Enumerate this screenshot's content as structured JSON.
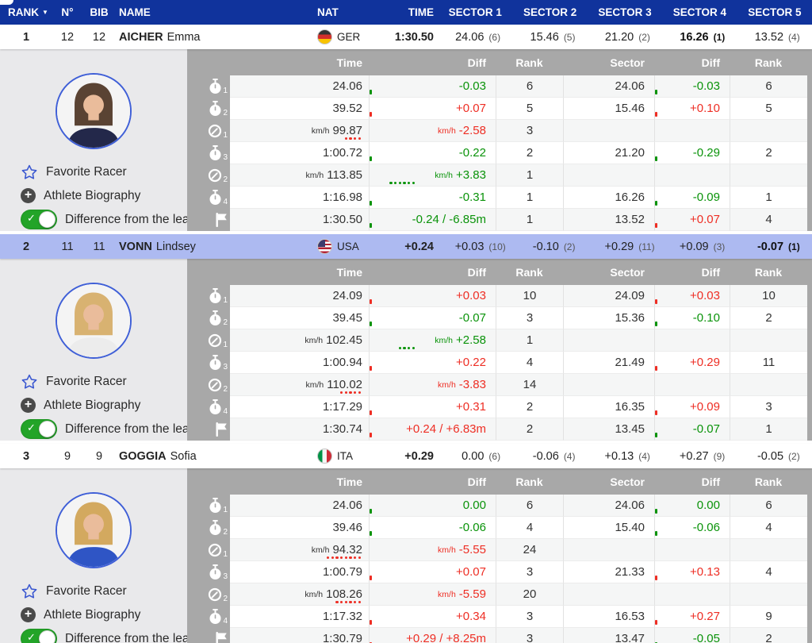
{
  "table": {
    "headers": {
      "rank": "RANK",
      "n": "N°",
      "bib": "BIB",
      "name": "NAME",
      "nat": "NAT",
      "time": "TIME",
      "sectors": [
        "SECTOR 1",
        "SECTOR 2",
        "SECTOR 3",
        "SECTOR 4",
        "SECTOR 5"
      ]
    },
    "sort_icon": "▼"
  },
  "panel_headers": {
    "time": "Time",
    "diff": "Diff",
    "rank": "Rank",
    "sector": "Sector",
    "sector_diff": "Diff",
    "sector_rank": "Rank"
  },
  "sidebar": {
    "favorite": "Favorite Racer",
    "biography": "Athlete Biography",
    "toggle": "Difference from the leader",
    "toggle_on": true
  },
  "colors": {
    "header_blue": "#10339c",
    "highlight_row": "#adbaf1",
    "panel_gray": "#a8a8a8",
    "sidebar_gray": "#e9e9eb",
    "diff_green": "#0a930a",
    "diff_red": "#ee2e24",
    "toggle_green": "#23a428",
    "star_blue": "#3a57d0"
  },
  "racers": [
    {
      "rank": "1",
      "n": "12",
      "bib": "12",
      "last": "AICHER",
      "first": "Emma",
      "nat": "GER",
      "flag": "ger",
      "time": "1:30.50",
      "highlight": false,
      "avatar": {
        "hair": "#5a4333",
        "jacket": "#23284a"
      },
      "sectors": [
        {
          "v": "24.06",
          "r": "(6)"
        },
        {
          "v": "15.46",
          "r": "(5)"
        },
        {
          "v": "21.20",
          "r": "(2)"
        },
        {
          "v": "16.26",
          "r": "(1)",
          "best": true
        },
        {
          "v": "13.52",
          "r": "(4)"
        }
      ],
      "rows": [
        {
          "icon": "stopwatch",
          "sub": "1",
          "time": "24.06",
          "diff": "-0.03",
          "dc": "green",
          "rank": "6",
          "sector": "24.06",
          "sdiff": "-0.03",
          "sdc": "green",
          "srank": "6"
        },
        {
          "icon": "stopwatch",
          "sub": "2",
          "time": "39.52",
          "diff": "+0.07",
          "dc": "red",
          "rank": "5",
          "sector": "15.46",
          "sdiff": "+0.10",
          "sdc": "red",
          "srank": "5"
        },
        {
          "icon": "speed",
          "sub": "1",
          "unit": "km/h",
          "time": "99.87",
          "diff": "-2.58",
          "dc": "red",
          "rank": "3",
          "dots": 4,
          "dots_side": "left"
        },
        {
          "icon": "stopwatch",
          "sub": "3",
          "time": "1:00.72",
          "diff": "-0.22",
          "dc": "green",
          "rank": "2",
          "sector": "21.20",
          "sdiff": "-0.29",
          "sdc": "green",
          "srank": "2"
        },
        {
          "icon": "speed",
          "sub": "2",
          "unit": "km/h",
          "time": "113.85",
          "diff": "+3.83",
          "dc": "green",
          "rank": "1",
          "dots": 6,
          "dots_side": "right"
        },
        {
          "icon": "stopwatch",
          "sub": "4",
          "time": "1:16.98",
          "diff": "-0.31",
          "dc": "green",
          "rank": "1",
          "sector": "16.26",
          "sdiff": "-0.09",
          "sdc": "green",
          "srank": "1"
        },
        {
          "icon": "flag",
          "time": "1:30.50",
          "diff": "-0.24 / -6.85m",
          "dc": "green",
          "rank": "1",
          "sector": "13.52",
          "sdiff": "+0.07",
          "sdc": "red",
          "srank": "4"
        }
      ]
    },
    {
      "rank": "2",
      "n": "11",
      "bib": "11",
      "last": "VONN",
      "first": "Lindsey",
      "nat": "USA",
      "flag": "usa",
      "time": "+0.24",
      "highlight": true,
      "avatar": {
        "hair": "#d8b271",
        "jacket": "#ececec"
      },
      "sectors": [
        {
          "v": "+0.03",
          "r": "(10)"
        },
        {
          "v": "-0.10",
          "r": "(2)"
        },
        {
          "v": "+0.29",
          "r": "(11)"
        },
        {
          "v": "+0.09",
          "r": "(3)"
        },
        {
          "v": "-0.07",
          "r": "(1)",
          "best": true
        }
      ],
      "rows": [
        {
          "icon": "stopwatch",
          "sub": "1",
          "time": "24.09",
          "diff": "+0.03",
          "dc": "red",
          "rank": "10",
          "sector": "24.09",
          "sdiff": "+0.03",
          "sdc": "red",
          "srank": "10"
        },
        {
          "icon": "stopwatch",
          "sub": "2",
          "time": "39.45",
          "diff": "-0.07",
          "dc": "green",
          "rank": "3",
          "sector": "15.36",
          "sdiff": "-0.10",
          "sdc": "green",
          "srank": "2"
        },
        {
          "icon": "speed",
          "sub": "1",
          "unit": "km/h",
          "time": "102.45",
          "diff": "+2.58",
          "dc": "green",
          "rank": "1",
          "dots": 4,
          "dots_side": "right"
        },
        {
          "icon": "stopwatch",
          "sub": "3",
          "time": "1:00.94",
          "diff": "+0.22",
          "dc": "red",
          "rank": "4",
          "sector": "21.49",
          "sdiff": "+0.29",
          "sdc": "red",
          "srank": "11"
        },
        {
          "icon": "speed",
          "sub": "2",
          "unit": "km/h",
          "time": "110.02",
          "diff": "-3.83",
          "dc": "red",
          "rank": "14",
          "dots": 5,
          "dots_side": "left"
        },
        {
          "icon": "stopwatch",
          "sub": "4",
          "time": "1:17.29",
          "diff": "+0.31",
          "dc": "red",
          "rank": "2",
          "sector": "16.35",
          "sdiff": "+0.09",
          "sdc": "red",
          "srank": "3"
        },
        {
          "icon": "flag",
          "time": "1:30.74",
          "diff": "+0.24 / +6.83m",
          "dc": "red",
          "rank": "2",
          "sector": "13.45",
          "sdiff": "-0.07",
          "sdc": "green",
          "srank": "1"
        }
      ]
    },
    {
      "rank": "3",
      "n": "9",
      "bib": "9",
      "last": "GOGGIA",
      "first": "Sofia",
      "nat": "ITA",
      "flag": "ita",
      "time": "+0.29",
      "highlight": false,
      "avatar": {
        "hair": "#d3a95f",
        "jacket": "#2f55c5"
      },
      "sectors": [
        {
          "v": "0.00",
          "r": "(6)"
        },
        {
          "v": "-0.06",
          "r": "(4)"
        },
        {
          "v": "+0.13",
          "r": "(4)"
        },
        {
          "v": "+0.27",
          "r": "(9)"
        },
        {
          "v": "-0.05",
          "r": "(2)"
        }
      ],
      "rows": [
        {
          "icon": "stopwatch",
          "sub": "1",
          "time": "24.06",
          "diff": "0.00",
          "dc": "green",
          "rank": "6",
          "sector": "24.06",
          "sdiff": "0.00",
          "sdc": "green",
          "srank": "6"
        },
        {
          "icon": "stopwatch",
          "sub": "2",
          "time": "39.46",
          "diff": "-0.06",
          "dc": "green",
          "rank": "4",
          "sector": "15.40",
          "sdiff": "-0.06",
          "sdc": "green",
          "srank": "4"
        },
        {
          "icon": "speed",
          "sub": "1",
          "unit": "km/h",
          "time": "94.32",
          "diff": "-5.55",
          "dc": "red",
          "rank": "24",
          "dots": 8,
          "dots_side": "left"
        },
        {
          "icon": "stopwatch",
          "sub": "3",
          "time": "1:00.79",
          "diff": "+0.07",
          "dc": "red",
          "rank": "3",
          "sector": "21.33",
          "sdiff": "+0.13",
          "sdc": "red",
          "srank": "4"
        },
        {
          "icon": "speed",
          "sub": "2",
          "unit": "km/h",
          "time": "108.26",
          "diff": "-5.59",
          "dc": "red",
          "rank": "20",
          "dots": 6,
          "dots_side": "left"
        },
        {
          "icon": "stopwatch",
          "sub": "4",
          "time": "1:17.32",
          "diff": "+0.34",
          "dc": "red",
          "rank": "3",
          "sector": "16.53",
          "sdiff": "+0.27",
          "sdc": "red",
          "srank": "9"
        },
        {
          "icon": "flag",
          "time": "1:30.79",
          "diff": "+0.29 / +8.25m",
          "dc": "red",
          "rank": "3",
          "sector": "13.47",
          "sdiff": "-0.05",
          "sdc": "green",
          "srank": "2"
        }
      ]
    }
  ]
}
